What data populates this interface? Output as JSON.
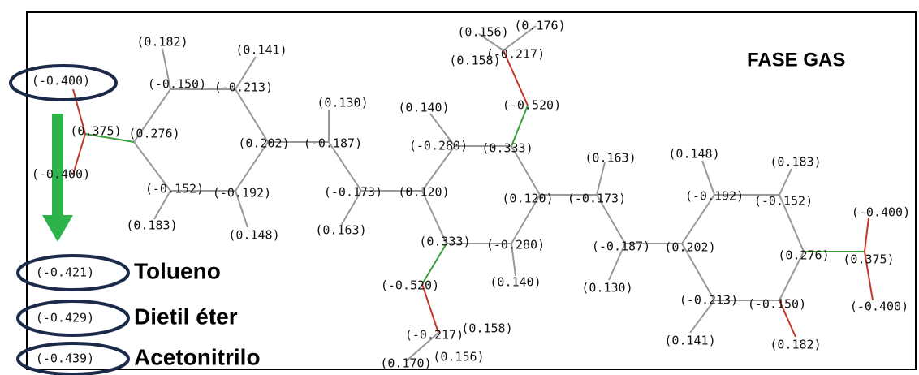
{
  "title": "FASE GAS",
  "charges": [
    "(0.182)",
    "(0.141)",
    "(-0.150)",
    "(-0.213)",
    "(-0.400)",
    "(0.375)",
    "(0.276)",
    "(-0.400)",
    "(0.202)",
    "(-0.187)",
    "(0.130)",
    "(0.140)",
    "(-0.280)",
    "(0.333)",
    "(-0.520)",
    "(0.156)",
    "(0.176)",
    "(0.158)",
    "(-0.217)",
    "(-0.152)",
    "(-0.192)",
    "(0.183)",
    "(0.148)",
    "(-0.173)",
    "(0.120)",
    "(0.163)",
    "(0.120)",
    "(-0.173)",
    "(0.163)",
    "(0.148)",
    "(0.183)",
    "(-0.192)",
    "(-0.152)",
    "(-0.400)",
    "(0.333)",
    "(-0.280)",
    "(-0.187)",
    "(0.202)",
    "(0.276)",
    "(0.375)",
    "(-0.520)",
    "(0.140)",
    "(0.130)",
    "(-0.213)",
    "(-0.150)",
    "(-0.400)",
    "(-0.217)",
    "(0.158)",
    "(0.170)",
    "(0.156)",
    "(0.141)",
    "(0.182)"
  ],
  "solvents": [
    {
      "charge": "(-0.421)",
      "name": "Tolueno"
    },
    {
      "charge": "(-0.429)",
      "name": "Dietil éter"
    },
    {
      "charge": "(-0.439)",
      "name": "Acetonitrilo"
    }
  ]
}
